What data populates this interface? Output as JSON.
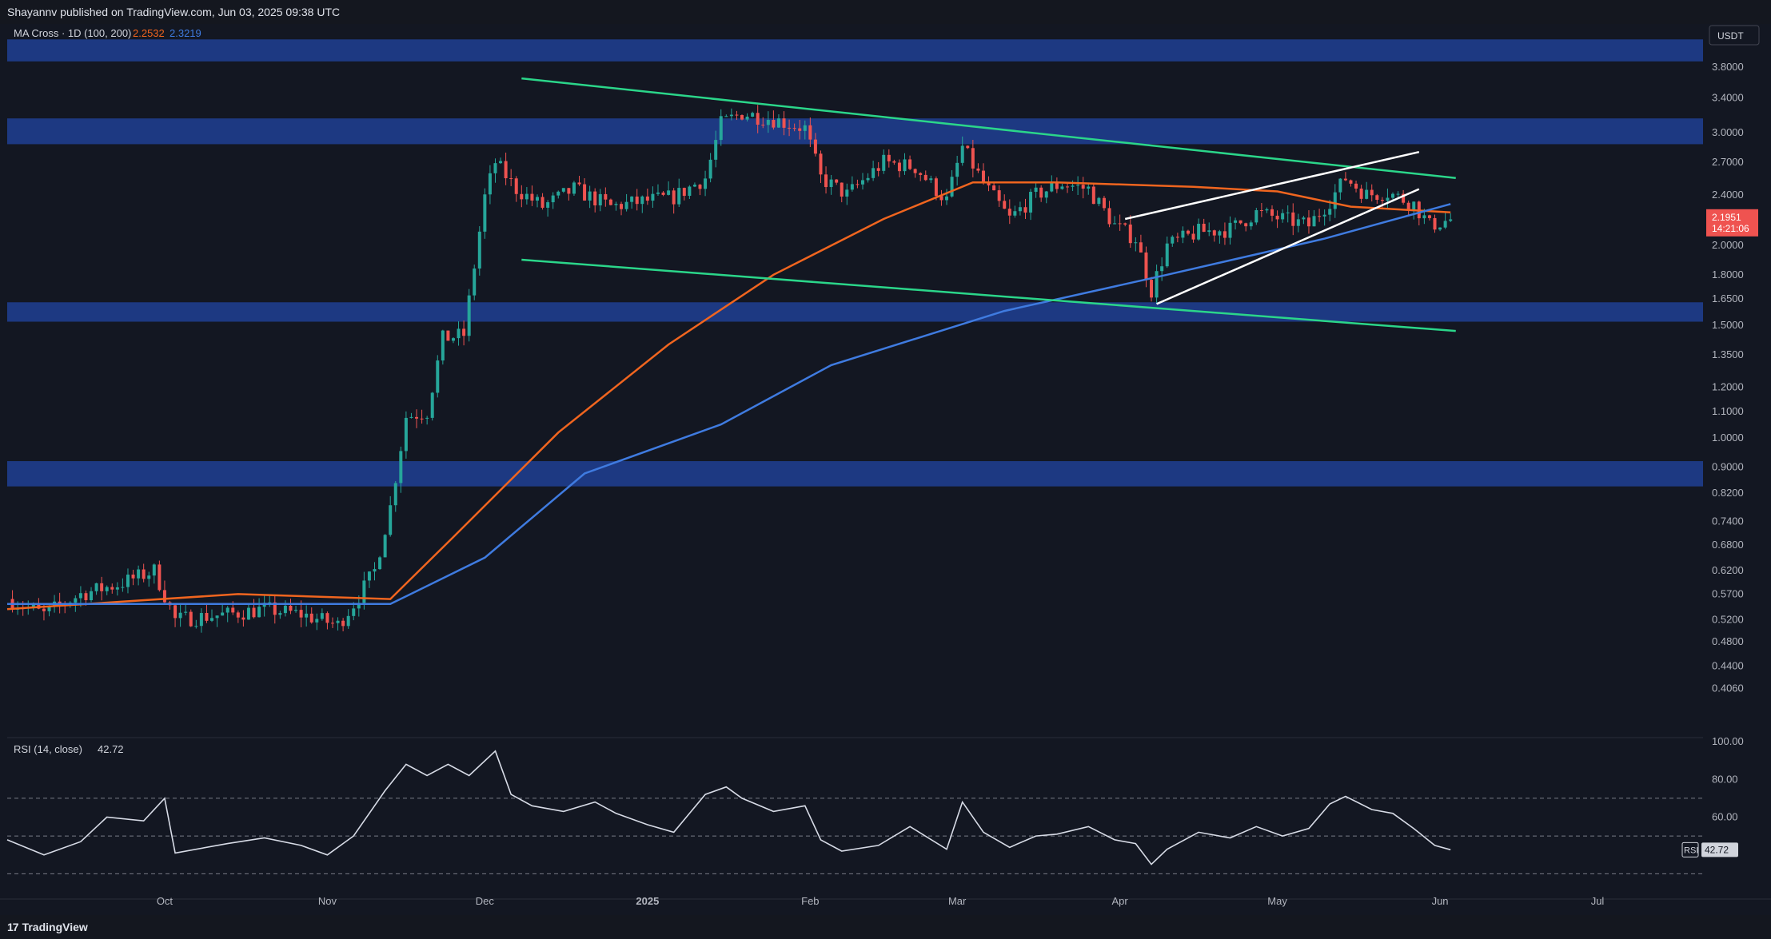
{
  "header": {
    "attribution": "Shayannv published on TradingView.com, Jun 03, 2025 09:38 UTC"
  },
  "footer": {
    "brand": "TradingView",
    "logo_icon": "tradingview-logo-icon"
  },
  "colors": {
    "background": "#131722",
    "up": "#26a69a",
    "down": "#ef5350",
    "ma100": "#f0651f",
    "ma200": "#3f7be0",
    "zone": "#1f3f8f",
    "channel": "#2bd68a",
    "wedge": "#ffffff",
    "rsi": "#d7dbe6"
  },
  "chart_data": [
    {
      "type": "line",
      "chart": "price",
      "indicator_label": "MA Cross · 1D (100, 200)",
      "ma_values": [
        "2.2532",
        "2.3219"
      ],
      "currency_label": "USDT",
      "y_ticks": [
        "3.8000",
        "3.4000",
        "3.0000",
        "2.7000",
        "2.4000",
        "2.0000",
        "1.8000",
        "1.6500",
        "1.5000",
        "1.3500",
        "1.2000",
        "1.1000",
        "1.0000",
        "0.9000",
        "0.8200",
        "0.7400",
        "0.6800",
        "0.6200",
        "0.5700",
        "0.5200",
        "0.4800",
        "0.4400",
        "0.4060"
      ],
      "y_scale": "log",
      "ylim": [
        0.4,
        4.0
      ],
      "x_ticks": [
        "Oct",
        "Nov",
        "Dec",
        "2025",
        "Feb",
        "Mar",
        "Apr",
        "May",
        "Jun",
        "Jul"
      ],
      "last_price": "2.1951",
      "countdown": "14:21:06",
      "close_series": [
        [
          "2024-09-01",
          0.56
        ],
        [
          "2024-09-08",
          0.53
        ],
        [
          "2024-09-15",
          0.57
        ],
        [
          "2024-09-22",
          0.59
        ],
        [
          "2024-09-29",
          0.62
        ],
        [
          "2024-10-03",
          0.52
        ],
        [
          "2024-10-13",
          0.53
        ],
        [
          "2024-10-20",
          0.54
        ],
        [
          "2024-10-27",
          0.53
        ],
        [
          "2024-11-03",
          0.51
        ],
        [
          "2024-11-06",
          0.55
        ],
        [
          "2024-11-10",
          0.62
        ],
        [
          "2024-11-13",
          0.78
        ],
        [
          "2024-11-16",
          1.08
        ],
        [
          "2024-11-20",
          1.1
        ],
        [
          "2024-11-23",
          1.43
        ],
        [
          "2024-11-27",
          1.45
        ],
        [
          "2024-12-01",
          2.38
        ],
        [
          "2024-12-03",
          2.7
        ],
        [
          "2024-12-07",
          2.45
        ],
        [
          "2024-12-12",
          2.3
        ],
        [
          "2024-12-18",
          2.45
        ],
        [
          "2024-12-25",
          2.3
        ],
        [
          "2025-01-01",
          2.35
        ],
        [
          "2025-01-06",
          2.38
        ],
        [
          "2025-01-12",
          2.55
        ],
        [
          "2025-01-15",
          3.1
        ],
        [
          "2025-01-19",
          3.22
        ],
        [
          "2025-01-25",
          3.15
        ],
        [
          "2025-01-31",
          3.05
        ],
        [
          "2025-02-03",
          2.55
        ],
        [
          "2025-02-08",
          2.4
        ],
        [
          "2025-02-15",
          2.7
        ],
        [
          "2025-02-21",
          2.65
        ],
        [
          "2025-02-27",
          2.35
        ],
        [
          "2025-03-02",
          2.85
        ],
        [
          "2025-03-06",
          2.5
        ],
        [
          "2025-03-11",
          2.2
        ],
        [
          "2025-03-16",
          2.4
        ],
        [
          "2025-03-21",
          2.5
        ],
        [
          "2025-03-26",
          2.45
        ],
        [
          "2025-03-31",
          2.15
        ],
        [
          "2025-04-04",
          2.05
        ],
        [
          "2025-04-07",
          1.7
        ],
        [
          "2025-04-10",
          2.0
        ],
        [
          "2025-04-16",
          2.1
        ],
        [
          "2025-04-22",
          2.12
        ],
        [
          "2025-04-27",
          2.25
        ],
        [
          "2025-05-02",
          2.2
        ],
        [
          "2025-05-07",
          2.15
        ],
        [
          "2025-05-11",
          2.35
        ],
        [
          "2025-05-14",
          2.55
        ],
        [
          "2025-05-18",
          2.4
        ],
        [
          "2025-05-22",
          2.42
        ],
        [
          "2025-05-27",
          2.32
        ],
        [
          "2025-05-30",
          2.15
        ],
        [
          "2025-06-03",
          2.195
        ]
      ],
      "series": [
        {
          "name": "MA 100",
          "last": 2.2532,
          "values": [
            [
              "2024-09-01",
              0.54
            ],
            [
              "2024-10-15",
              0.57
            ],
            [
              "2024-11-13",
              0.56
            ],
            [
              "2024-11-25",
              0.7
            ],
            [
              "2024-12-15",
              1.02
            ],
            [
              "2025-01-05",
              1.4
            ],
            [
              "2025-01-25",
              1.8
            ],
            [
              "2025-02-15",
              2.2
            ],
            [
              "2025-03-04",
              2.51
            ],
            [
              "2025-03-20",
              2.51
            ],
            [
              "2025-04-15",
              2.47
            ],
            [
              "2025-05-01",
              2.43
            ],
            [
              "2025-05-15",
              2.3
            ],
            [
              "2025-06-03",
              2.2532
            ]
          ]
        },
        {
          "name": "MA 200",
          "last": 2.3219,
          "values": [
            [
              "2024-09-01",
              0.55
            ],
            [
              "2024-10-15",
              0.55
            ],
            [
              "2024-11-13",
              0.55
            ],
            [
              "2024-12-01",
              0.65
            ],
            [
              "2024-12-20",
              0.88
            ],
            [
              "2025-01-15",
              1.05
            ],
            [
              "2025-02-05",
              1.3
            ],
            [
              "2025-03-10",
              1.58
            ],
            [
              "2025-04-10",
              1.8
            ],
            [
              "2025-05-10",
              2.05
            ],
            [
              "2025-06-03",
              2.3219
            ]
          ]
        }
      ],
      "zones": [
        [
          3.88,
          4.2
        ],
        [
          2.88,
          3.16
        ],
        [
          1.52,
          1.63
        ],
        [
          0.84,
          0.92
        ]
      ],
      "annotations": [
        {
          "type": "descending-channel",
          "upper": [
            [
              "2024-12-08",
              3.65
            ],
            [
              "2025-06-04",
              2.55
            ]
          ],
          "lower": [
            [
              "2024-12-08",
              1.9
            ],
            [
              "2025-06-04",
              1.47
            ]
          ]
        },
        {
          "type": "rising-wedge",
          "upper": [
            [
              "2025-04-02",
              2.2
            ],
            [
              "2025-05-28",
              2.8
            ]
          ],
          "lower": [
            [
              "2025-04-08",
              1.62
            ],
            [
              "2025-05-28",
              2.45
            ]
          ]
        }
      ]
    },
    {
      "type": "line",
      "chart": "rsi",
      "indicator_label": "RSI (14, close)",
      "value_label": "42.72",
      "badge_label": "RSI",
      "y_ticks": [
        "100.00",
        "80.00",
        "60.00"
      ],
      "ylim": [
        20,
        100
      ],
      "bands": [
        70,
        50,
        30
      ],
      "series": [
        {
          "name": "RSI",
          "last": 42.72,
          "values": [
            [
              "2024-09-01",
              48
            ],
            [
              "2024-09-08",
              40
            ],
            [
              "2024-09-15",
              47
            ],
            [
              "2024-09-20",
              60
            ],
            [
              "2024-09-27",
              58
            ],
            [
              "2024-10-01",
              70
            ],
            [
              "2024-10-03",
              41
            ],
            [
              "2024-10-13",
              46
            ],
            [
              "2024-10-20",
              49
            ],
            [
              "2024-10-27",
              45
            ],
            [
              "2024-11-01",
              40
            ],
            [
              "2024-11-06",
              50
            ],
            [
              "2024-11-12",
              74
            ],
            [
              "2024-11-16",
              88
            ],
            [
              "2024-11-20",
              82
            ],
            [
              "2024-11-24",
              88
            ],
            [
              "2024-11-28",
              82
            ],
            [
              "2024-12-03",
              95
            ],
            [
              "2024-12-06",
              72
            ],
            [
              "2024-12-10",
              66
            ],
            [
              "2024-12-16",
              63
            ],
            [
              "2024-12-22",
              68
            ],
            [
              "2024-12-26",
              62
            ],
            [
              "2025-01-01",
              56
            ],
            [
              "2025-01-06",
              52
            ],
            [
              "2025-01-12",
              72
            ],
            [
              "2025-01-16",
              76
            ],
            [
              "2025-01-19",
              70
            ],
            [
              "2025-01-25",
              63
            ],
            [
              "2025-01-31",
              66
            ],
            [
              "2025-02-03",
              48
            ],
            [
              "2025-02-07",
              42
            ],
            [
              "2025-02-14",
              45
            ],
            [
              "2025-02-20",
              55
            ],
            [
              "2025-02-27",
              43
            ],
            [
              "2025-03-02",
              68
            ],
            [
              "2025-03-06",
              52
            ],
            [
              "2025-03-11",
              44
            ],
            [
              "2025-03-16",
              50
            ],
            [
              "2025-03-20",
              51
            ],
            [
              "2025-03-26",
              55
            ],
            [
              "2025-03-31",
              48
            ],
            [
              "2025-04-04",
              46
            ],
            [
              "2025-04-07",
              35
            ],
            [
              "2025-04-10",
              43
            ],
            [
              "2025-04-16",
              52
            ],
            [
              "2025-04-22",
              49
            ],
            [
              "2025-04-27",
              55
            ],
            [
              "2025-05-02",
              50
            ],
            [
              "2025-05-07",
              54
            ],
            [
              "2025-05-11",
              67
            ],
            [
              "2025-05-14",
              71
            ],
            [
              "2025-05-19",
              64
            ],
            [
              "2025-05-23",
              62
            ],
            [
              "2025-05-27",
              54
            ],
            [
              "2025-05-31",
              45
            ],
            [
              "2025-06-03",
              42.72
            ]
          ]
        }
      ]
    }
  ]
}
